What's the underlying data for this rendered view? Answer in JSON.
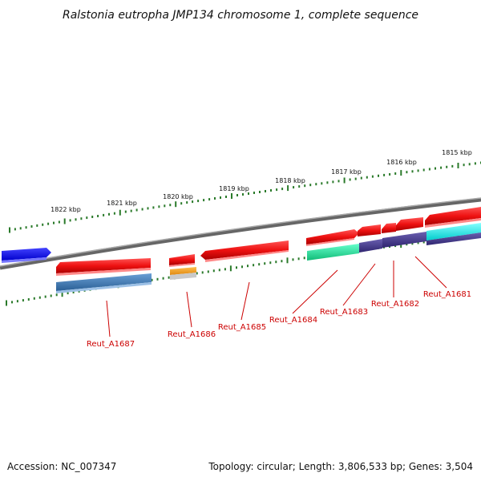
{
  "title": "Ralstonia eutropha JMP134 chromosome 1, complete sequence",
  "accession": "Accession: NC_007347",
  "topology": "Topology: circular; Length: 3,806,533 bp; Genes: 3,504",
  "kbp_labels": [
    "1822 kbp",
    "1821 kbp",
    "1820 kbp",
    "1819 kbp",
    "1818 kbp",
    "1817 kbp",
    "1816 kbp",
    "1815 kbp"
  ],
  "gene_labels": [
    "Reut_A1687",
    "Reut_A1686",
    "Reut_A1685",
    "Reut_A1684",
    "Reut_A1683",
    "Reut_A1682",
    "Reut_A1681"
  ],
  "colors": {
    "forward_gene": "#ee1111",
    "cds_blue": "#4a7fb5",
    "cds_orange": "#f0a020",
    "cds_green": "#22dd99",
    "cds_purple": "#4b3f8f",
    "cds_cyan": "#22eeee",
    "leftmost_gene": "#1111ee",
    "backbone": "#888888",
    "ticks": "#2a7a2a",
    "gene_label": "#cc0000"
  }
}
